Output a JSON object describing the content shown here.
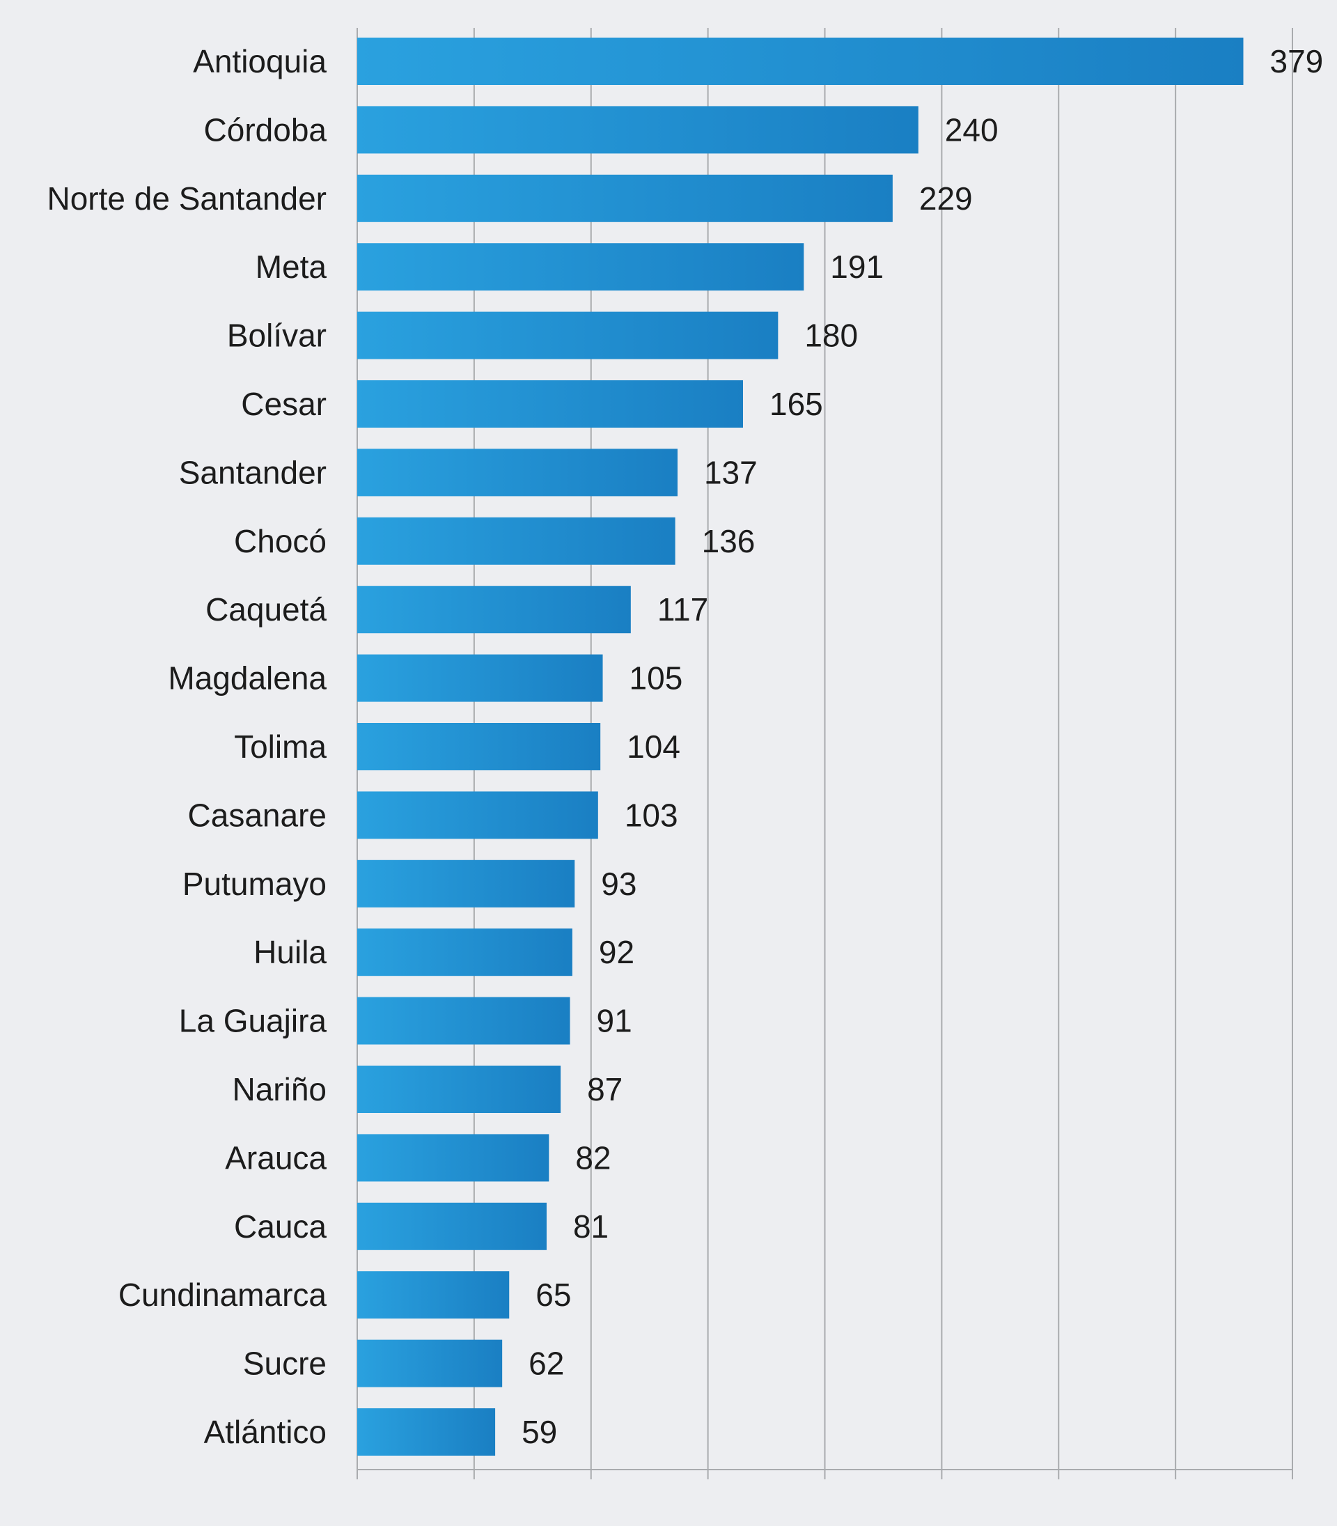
{
  "chart_data": {
    "type": "bar",
    "orientation": "horizontal",
    "categories": [
      "Antioquia",
      "Córdoba",
      "Norte de Santander",
      "Meta",
      "Bolívar",
      "Cesar",
      "Santander",
      "Chocó",
      "Caquetá",
      "Magdalena",
      "Tolima",
      "Casanare",
      "Putumayo",
      "Huila",
      "La Guajira",
      "Nariño",
      "Arauca",
      "Cauca",
      "Cundinamarca",
      "Sucre",
      "Atlántico"
    ],
    "values": [
      379,
      240,
      229,
      191,
      180,
      165,
      137,
      136,
      117,
      105,
      104,
      103,
      93,
      92,
      91,
      87,
      82,
      81,
      65,
      62,
      59
    ],
    "xlim": [
      0,
      400
    ],
    "x_gridlines": [
      0,
      50,
      100,
      150,
      200,
      250,
      300,
      350,
      400
    ],
    "tick_labels_visible": false,
    "grid": true,
    "data_labels": true,
    "title": "",
    "xlabel": "",
    "ylabel": "",
    "colors": {
      "bar_start": "#2aa1df",
      "bar_end": "#1a7fc3",
      "background": "#edeef1",
      "grid": "#a9abae",
      "axis": "#a9abae",
      "text": "#1c1c1c"
    }
  }
}
